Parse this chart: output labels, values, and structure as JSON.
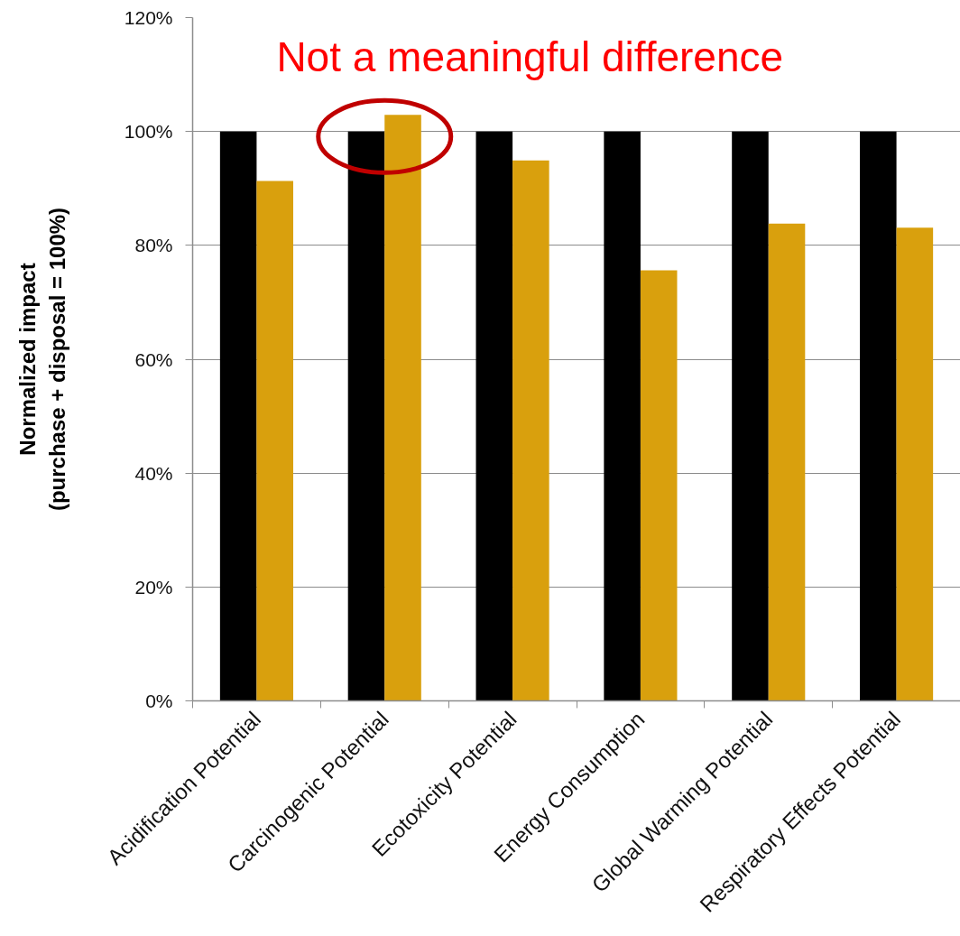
{
  "chart_data": {
    "type": "bar",
    "categories": [
      "Acidification Potential",
      "Carcinogenic Potential",
      "Ecotoxicity Potential",
      "Energy Consumption",
      "Global Warming Potential",
      "Respiratory Effects Potential"
    ],
    "series": [
      {
        "color": "#000000",
        "values": [
          100,
          100,
          100,
          100,
          100,
          100
        ]
      },
      {
        "color": "#d9a00d",
        "values": [
          91.3,
          102.9,
          94.9,
          75.6,
          83.8,
          83.1
        ]
      }
    ],
    "ylabel": "Normalized impact\n(purchase + disposal = 100%)",
    "ylim": [
      0,
      120
    ],
    "yticks": [
      {
        "value": 0,
        "label": "0%"
      },
      {
        "value": 20,
        "label": "20%"
      },
      {
        "value": 40,
        "label": "40%"
      },
      {
        "value": 60,
        "label": "60%"
      },
      {
        "value": 80,
        "label": "80%"
      },
      {
        "value": 100,
        "label": "100%"
      },
      {
        "value": 120,
        "label": "120%"
      }
    ],
    "grid": "y",
    "annotations": [
      {
        "text": "Not a meaningful difference",
        "x": "Carcinogenic Potential",
        "y": 102.9
      }
    ]
  }
}
